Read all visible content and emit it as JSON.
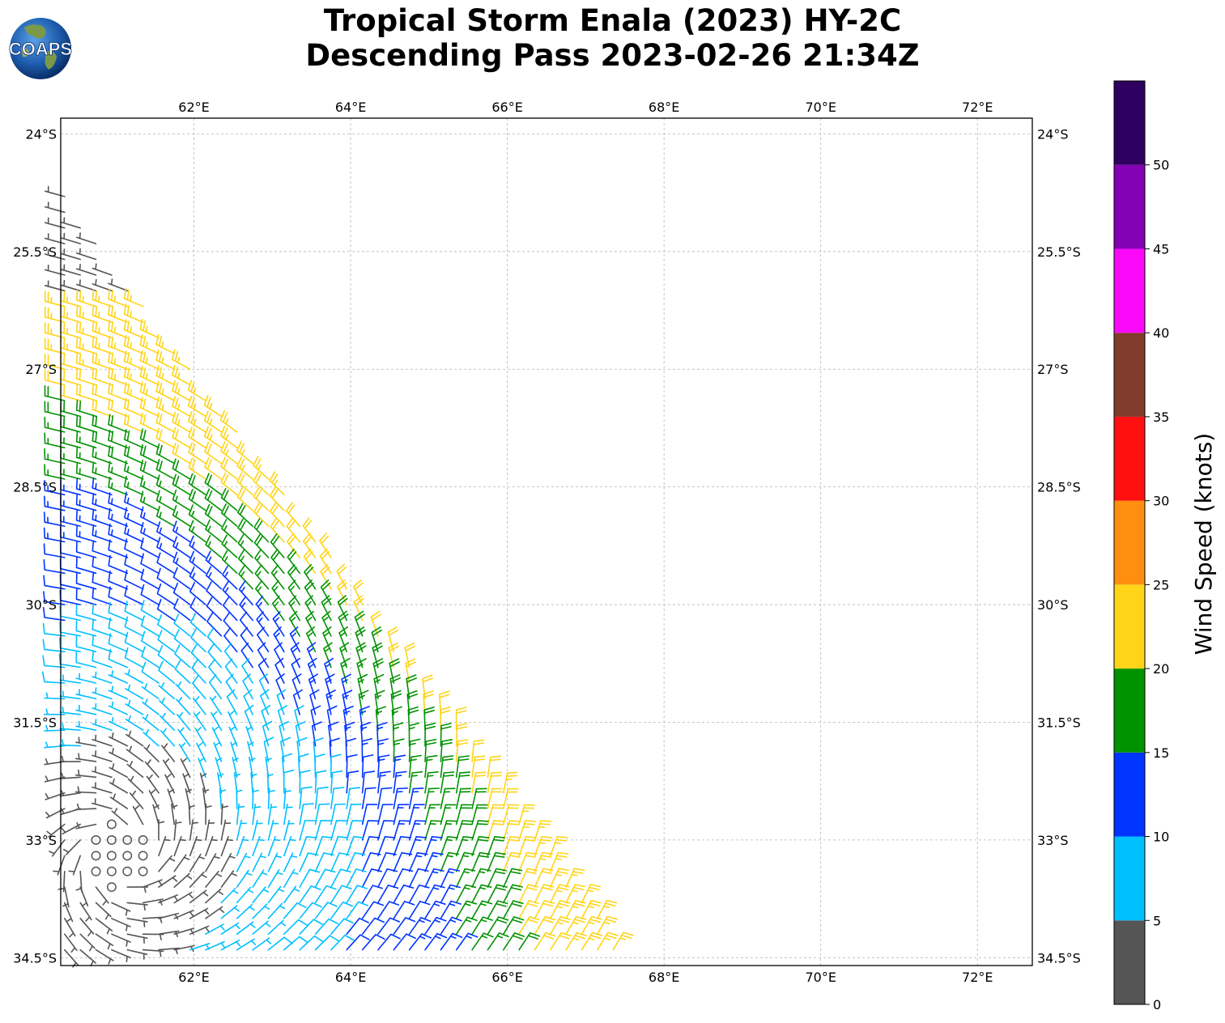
{
  "title": {
    "line1": "Tropical Storm Enala (2023) HY-2C",
    "line2": "Descending Pass 2023-02-26 21:34Z"
  },
  "logo": {
    "text": "COAPS",
    "icon": "coaps-globe-logo"
  },
  "map_data": {
    "type": "wind-barb-map",
    "lon_range": [
      60.3,
      72.7
    ],
    "lat_range": [
      -34.6,
      -23.8
    ],
    "lon_ticks": [
      "62°E",
      "64°E",
      "66°E",
      "68°E",
      "70°E",
      "72°E"
    ],
    "lat_ticks": [
      "24°S",
      "25.5°S",
      "27°S",
      "28.5°S",
      "30°S",
      "31.5°S",
      "33°S",
      "34.5°S"
    ],
    "gridlines": true,
    "barb_units": "knots",
    "storm_center": {
      "lon": 61.0,
      "lat": -33.2
    }
  },
  "colorbar": {
    "label": "Wind Speed (knots)",
    "ticks": [
      "0",
      "5",
      "10",
      "15",
      "20",
      "25",
      "30",
      "35",
      "40",
      "45",
      "50"
    ],
    "bins": [
      {
        "from": 0,
        "to": 5,
        "color": "#555555"
      },
      {
        "from": 5,
        "to": 10,
        "color": "#00bfff"
      },
      {
        "from": 10,
        "to": 15,
        "color": "#0034ff"
      },
      {
        "from": 15,
        "to": 20,
        "color": "#009300"
      },
      {
        "from": 20,
        "to": 25,
        "color": "#ffd419"
      },
      {
        "from": 25,
        "to": 30,
        "color": "#ff8f0f"
      },
      {
        "from": 30,
        "to": 35,
        "color": "#ff0f0f"
      },
      {
        "from": 35,
        "to": 40,
        "color": "#803b2b"
      },
      {
        "from": 40,
        "to": 45,
        "color": "#f908f9"
      },
      {
        "from": 45,
        "to": 50,
        "color": "#8400b4"
      },
      {
        "from": 50,
        "to": 55,
        "color": "#2e0060"
      }
    ]
  }
}
